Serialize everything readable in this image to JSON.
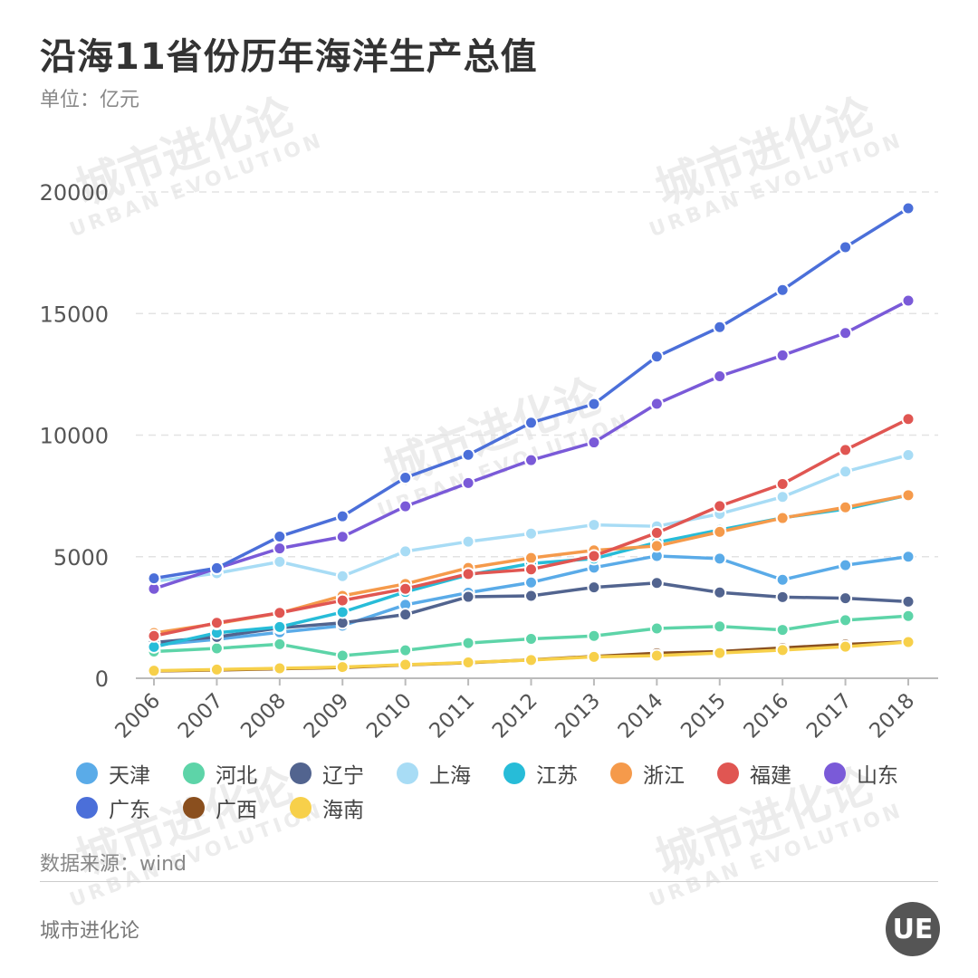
{
  "title": "沿海11省份历年海洋生产总值",
  "unit": "单位：亿元",
  "source": "数据来源：wind",
  "footer": "城市进化论",
  "logo_text": "UE",
  "watermark": {
    "cn": "城市进化论",
    "en": "URBAN EVOLUTION"
  },
  "chart_data": {
    "type": "line",
    "x": [
      "2006",
      "2007",
      "2008",
      "2009",
      "2010",
      "2011",
      "2012",
      "2013",
      "2014",
      "2015",
      "2016",
      "2017",
      "2018"
    ],
    "ylim": [
      0,
      20000
    ],
    "yticks": [
      0,
      5000,
      10000,
      15000,
      20000
    ],
    "grid": true,
    "legend_position": "bottom",
    "series": [
      {
        "name": "天津",
        "color": "#5aabe8",
        "values": [
          1370,
          1600,
          1890,
          2160,
          3020,
          3520,
          3940,
          4550,
          5030,
          4920,
          4050,
          4650,
          5000
        ]
      },
      {
        "name": "河北",
        "color": "#5dd4a8",
        "values": [
          1100,
          1230,
          1400,
          930,
          1150,
          1450,
          1620,
          1740,
          2050,
          2130,
          1990,
          2390,
          2560
        ]
      },
      {
        "name": "辽宁",
        "color": "#52648f",
        "values": [
          1470,
          1700,
          2070,
          2280,
          2620,
          3350,
          3390,
          3740,
          3920,
          3530,
          3340,
          3290,
          3150
        ]
      },
      {
        "name": "上海",
        "color": "#a8dcf5",
        "values": [
          3980,
          4320,
          4790,
          4200,
          5220,
          5620,
          5950,
          6310,
          6250,
          6760,
          7460,
          8500,
          9180
        ]
      },
      {
        "name": "江苏",
        "color": "#27bcd8",
        "values": [
          1290,
          1870,
          2110,
          2720,
          3550,
          4250,
          4720,
          4920,
          5590,
          6100,
          6600,
          6960,
          7530
        ]
      },
      {
        "name": "浙江",
        "color": "#f59a4b",
        "values": [
          1860,
          2250,
          2680,
          3390,
          3880,
          4540,
          4950,
          5260,
          5440,
          6020,
          6590,
          7030,
          7530
        ]
      },
      {
        "name": "福建",
        "color": "#e05652",
        "values": [
          1740,
          2280,
          2690,
          3200,
          3680,
          4290,
          4480,
          5030,
          5980,
          7080,
          7990,
          9390,
          10660
        ]
      },
      {
        "name": "山东",
        "color": "#7a5ad8",
        "values": [
          3680,
          4520,
          5340,
          5820,
          7070,
          8030,
          8970,
          9700,
          11290,
          12420,
          13280,
          14200,
          15530
        ]
      },
      {
        "name": "广东",
        "color": "#4b6fd9",
        "values": [
          4110,
          4530,
          5830,
          6660,
          8250,
          9190,
          10510,
          11280,
          13230,
          14440,
          15970,
          17730,
          19330
        ]
      },
      {
        "name": "广西",
        "color": "#8a4f1e",
        "values": [
          300,
          340,
          390,
          440,
          550,
          640,
          760,
          900,
          1030,
          1100,
          1250,
          1390,
          1500
        ]
      },
      {
        "name": "海南",
        "color": "#f7d04a",
        "values": [
          310,
          360,
          410,
          460,
          560,
          650,
          750,
          880,
          930,
          1040,
          1160,
          1300,
          1490
        ]
      }
    ]
  }
}
